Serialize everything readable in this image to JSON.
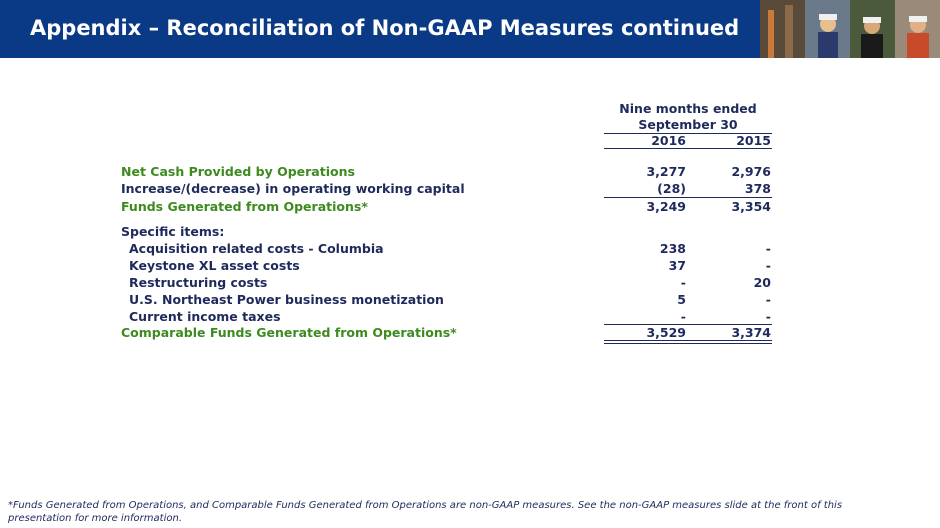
{
  "header": {
    "title": "Appendix – Reconciliation of Non-GAAP Measures continued"
  },
  "table": {
    "period": [
      "Nine months ended",
      "September 30"
    ],
    "columns": [
      "2016",
      "2015"
    ],
    "rows": [
      {
        "label": "Net Cash Provided by Operations",
        "values": [
          "3,277",
          "2,976"
        ]
      },
      {
        "label": "Increase/(decrease) in operating working capital",
        "values": [
          "(28)",
          "378"
        ]
      },
      {
        "label": "Funds Generated from Operations*",
        "values": [
          "3,249",
          "3,354"
        ]
      },
      {
        "label": "Specific items:",
        "values": [
          "",
          ""
        ]
      },
      {
        "label": "Acquisition related costs - Columbia",
        "values": [
          "238",
          "-"
        ]
      },
      {
        "label": "Keystone XL asset costs",
        "values": [
          "37",
          "-"
        ]
      },
      {
        "label": "Restructuring costs",
        "values": [
          "-",
          "20"
        ]
      },
      {
        "label": "U.S. Northeast Power business monetization",
        "values": [
          "5",
          "-"
        ]
      },
      {
        "label": "Current income taxes",
        "values": [
          "-",
          "-"
        ]
      },
      {
        "label": "Comparable Funds Generated from Operations*",
        "values": [
          "3,529",
          "3,374"
        ]
      }
    ]
  },
  "footnote": "*Funds Generated from Operations, and Comparable Funds Generated from Operations are non-GAAP measures.  See the non-GAAP measures slide at the front of this presentation for more information."
}
